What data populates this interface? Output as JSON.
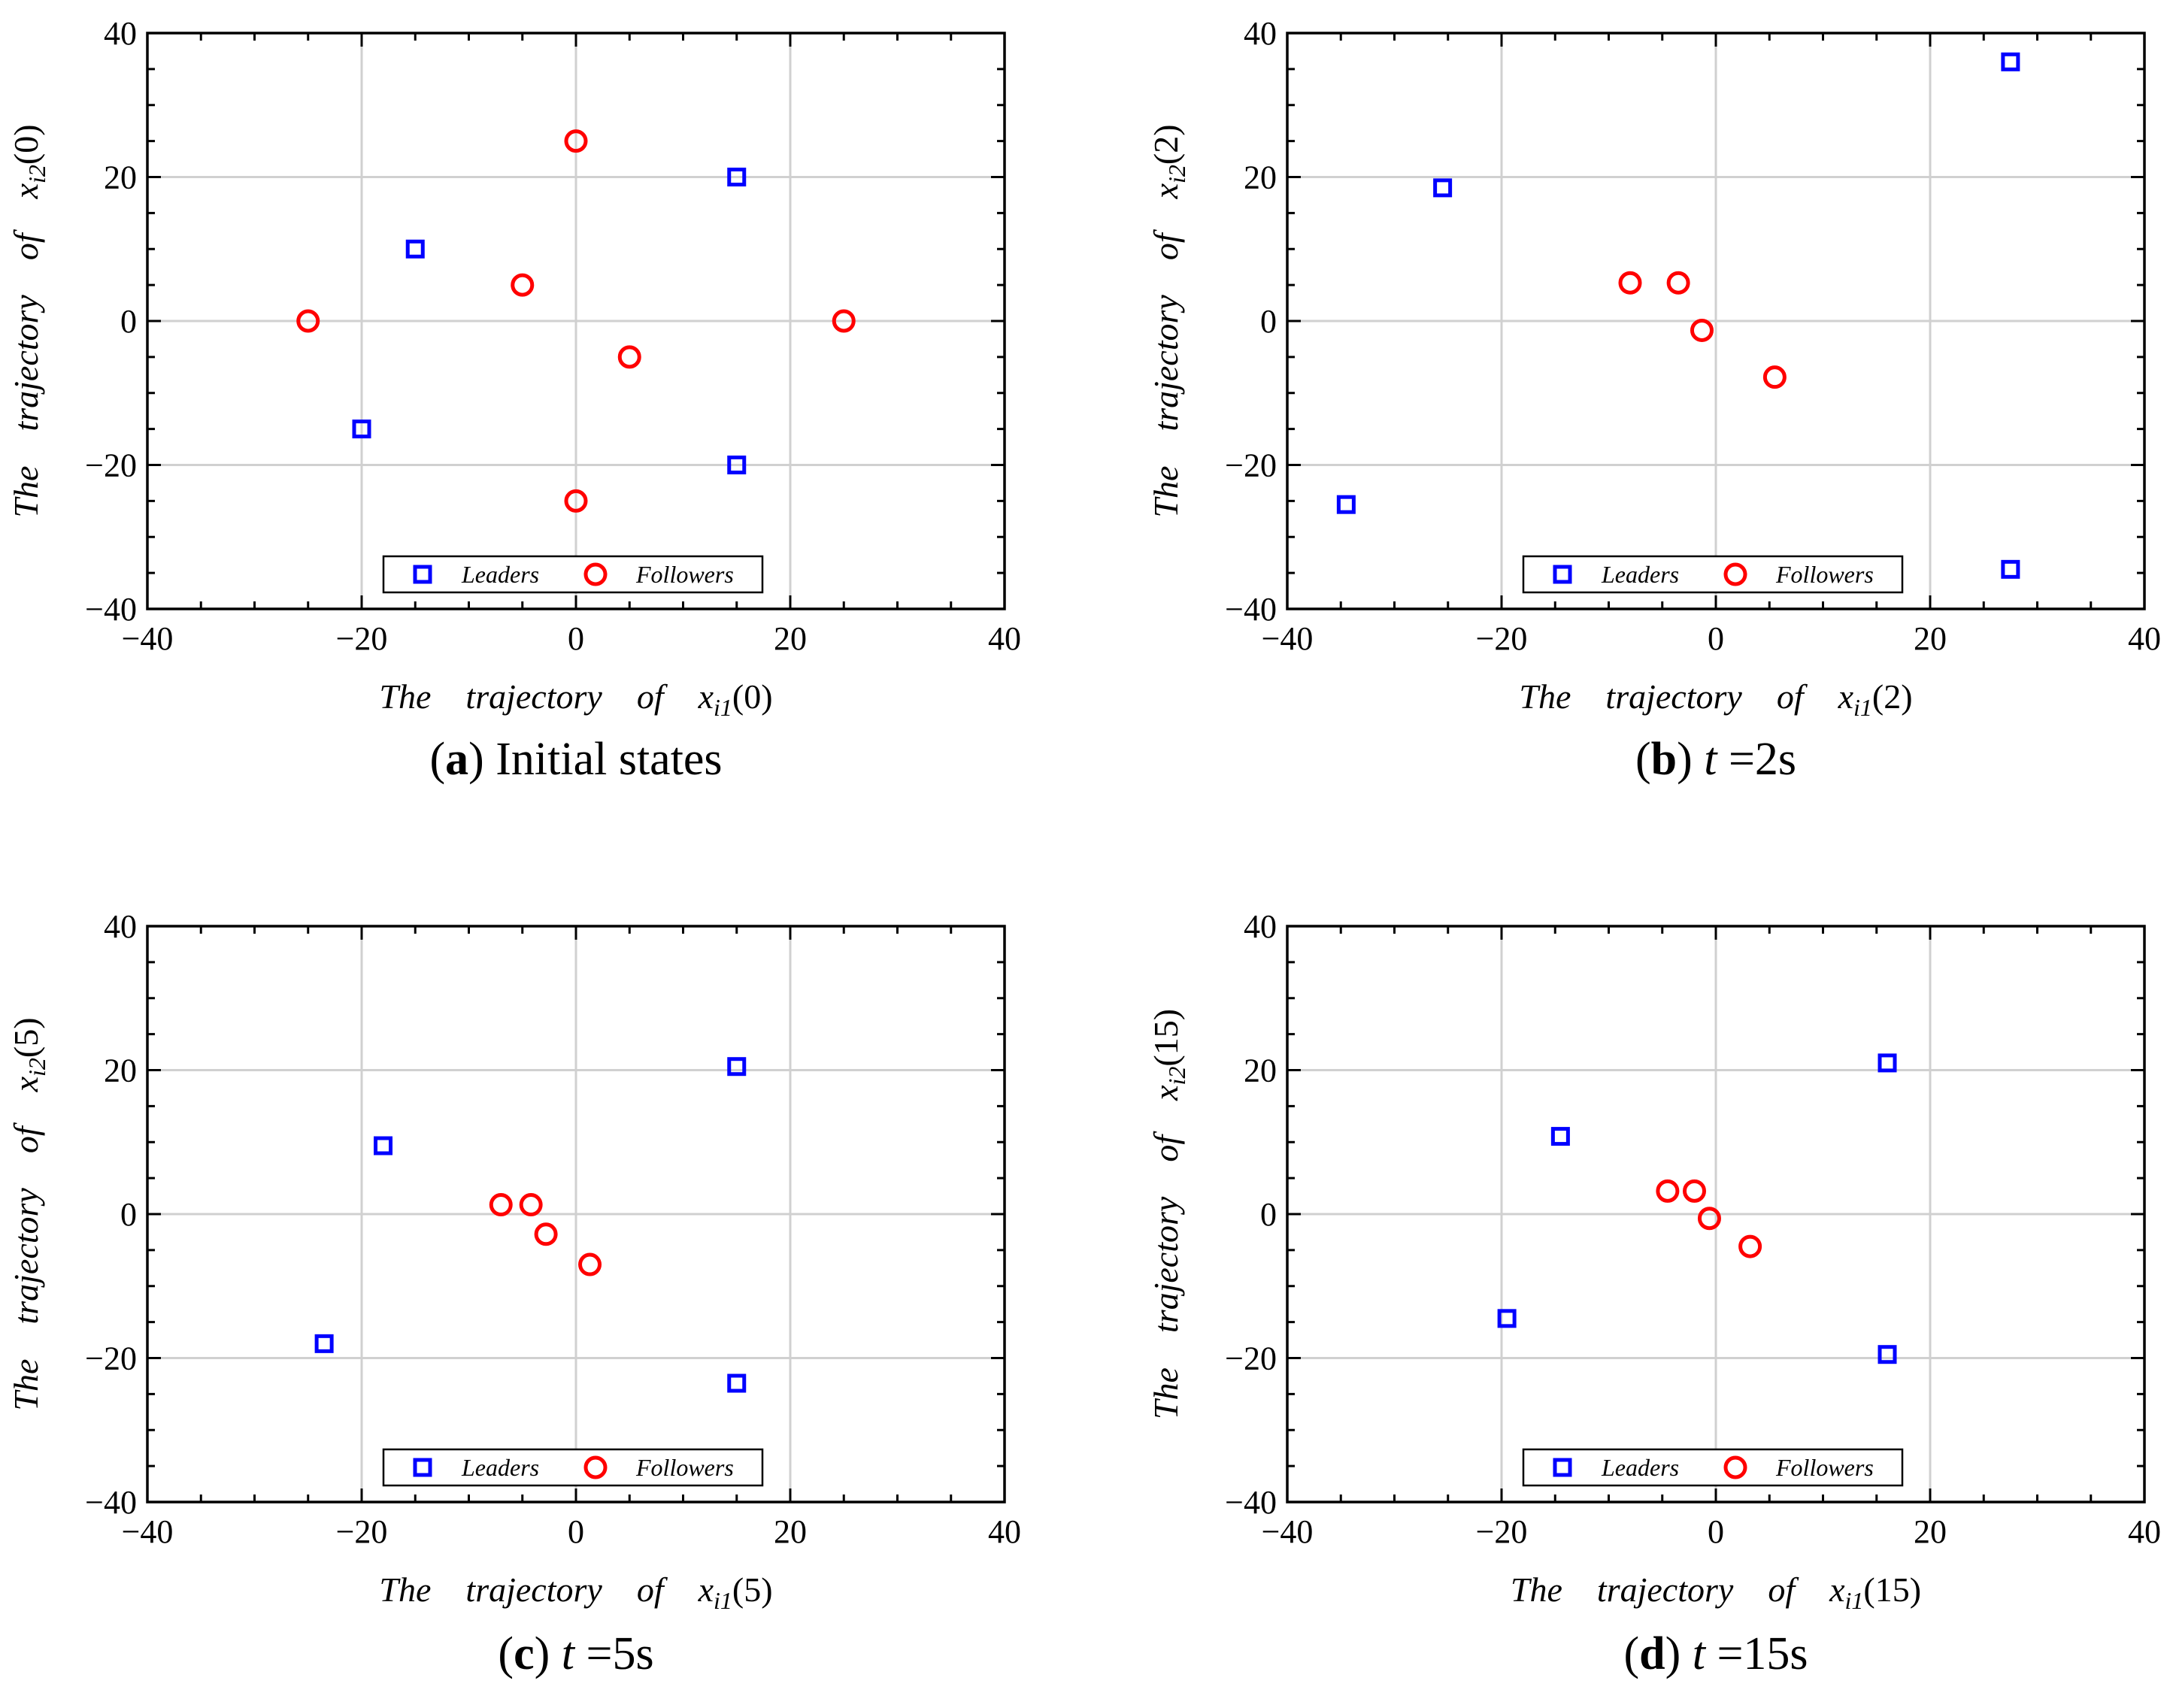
{
  "colors": {
    "leaders": "#0000ff",
    "followers": "#ff0000",
    "grid": "#d0d0d0",
    "axis": "#000000"
  },
  "chart_data": [
    {
      "type": "scatter",
      "caption_letter": "(a)",
      "caption_text": "Initial states",
      "xlabel": "The trajectory of x_i1(0)",
      "ylabel": "The trajectory of x_i2(0)",
      "xlim": [
        -40,
        40
      ],
      "ylim": [
        -40,
        40
      ],
      "xticks": [
        -40,
        -20,
        0,
        20,
        40
      ],
      "yticks": [
        -40,
        -20,
        0,
        20,
        40
      ],
      "grid": true,
      "legend_position": "bottom-center",
      "series": [
        {
          "name": "Leaders",
          "marker": "square",
          "points": [
            [
              -15,
              10
            ],
            [
              15,
              20
            ],
            [
              -20,
              -15
            ],
            [
              15,
              -20
            ]
          ]
        },
        {
          "name": "Followers",
          "marker": "circle",
          "points": [
            [
              0,
              25
            ],
            [
              -5,
              5
            ],
            [
              5,
              -5
            ],
            [
              -25,
              0
            ],
            [
              25,
              0
            ],
            [
              0,
              -25
            ]
          ]
        }
      ]
    },
    {
      "type": "scatter",
      "caption_letter": "(b)",
      "caption_text": "t =2s",
      "xlabel": "The trajectory of x_i1(2)",
      "ylabel": "The trajectory of x_i2(2)",
      "xlim": [
        -40,
        40
      ],
      "ylim": [
        -40,
        40
      ],
      "xticks": [
        -40,
        -20,
        0,
        20,
        40
      ],
      "yticks": [
        -40,
        -20,
        0,
        20,
        40
      ],
      "grid": true,
      "legend_position": "bottom-center",
      "series": [
        {
          "name": "Leaders",
          "marker": "square",
          "points": [
            [
              27.5,
              36
            ],
            [
              -25.5,
              18.5
            ],
            [
              -34.5,
              -25.5
            ],
            [
              27.5,
              -34.5
            ]
          ]
        },
        {
          "name": "Followers",
          "marker": "circle",
          "points": [
            [
              -8,
              5.3
            ],
            [
              -3.5,
              5.3
            ],
            [
              -1.3,
              -1.3
            ],
            [
              5.5,
              -7.8
            ]
          ]
        }
      ]
    },
    {
      "type": "scatter",
      "caption_letter": "(c)",
      "caption_text": "t =5s",
      "xlabel": "The trajectory of x_i1(5)",
      "ylabel": "The trajectory of x_i2(5)",
      "xlim": [
        -40,
        40
      ],
      "ylim": [
        -40,
        40
      ],
      "xticks": [
        -40,
        -20,
        0,
        20,
        40
      ],
      "yticks": [
        -40,
        -20,
        0,
        20,
        40
      ],
      "grid": true,
      "legend_position": "bottom-center",
      "series": [
        {
          "name": "Leaders",
          "marker": "square",
          "points": [
            [
              15,
              20.5
            ],
            [
              -18,
              9.5
            ],
            [
              -23.5,
              -18
            ],
            [
              15,
              -23.5
            ]
          ]
        },
        {
          "name": "Followers",
          "marker": "circle",
          "points": [
            [
              -7,
              1.3
            ],
            [
              -4.2,
              1.3
            ],
            [
              -2.8,
              -2.8
            ],
            [
              1.3,
              -7
            ]
          ]
        }
      ]
    },
    {
      "type": "scatter",
      "caption_letter": "(d)",
      "caption_text": "t =15s",
      "xlabel": "The trajectory of x_i1(15)",
      "ylabel": "The trajectory of x_i2(15)",
      "xlim": [
        -40,
        40
      ],
      "ylim": [
        -40,
        40
      ],
      "xticks": [
        -40,
        -20,
        0,
        20,
        40
      ],
      "yticks": [
        -40,
        -20,
        0,
        20,
        40
      ],
      "grid": true,
      "legend_position": "bottom-center",
      "series": [
        {
          "name": "Leaders",
          "marker": "square",
          "points": [
            [
              16,
              21
            ],
            [
              -14.5,
              10.8
            ],
            [
              -19.5,
              -14.5
            ],
            [
              16,
              -19.5
            ]
          ]
        },
        {
          "name": "Followers",
          "marker": "circle",
          "points": [
            [
              -4.5,
              3.2
            ],
            [
              -2,
              3.2
            ],
            [
              -0.6,
              -0.6
            ],
            [
              3.2,
              -4.5
            ]
          ]
        }
      ]
    }
  ]
}
